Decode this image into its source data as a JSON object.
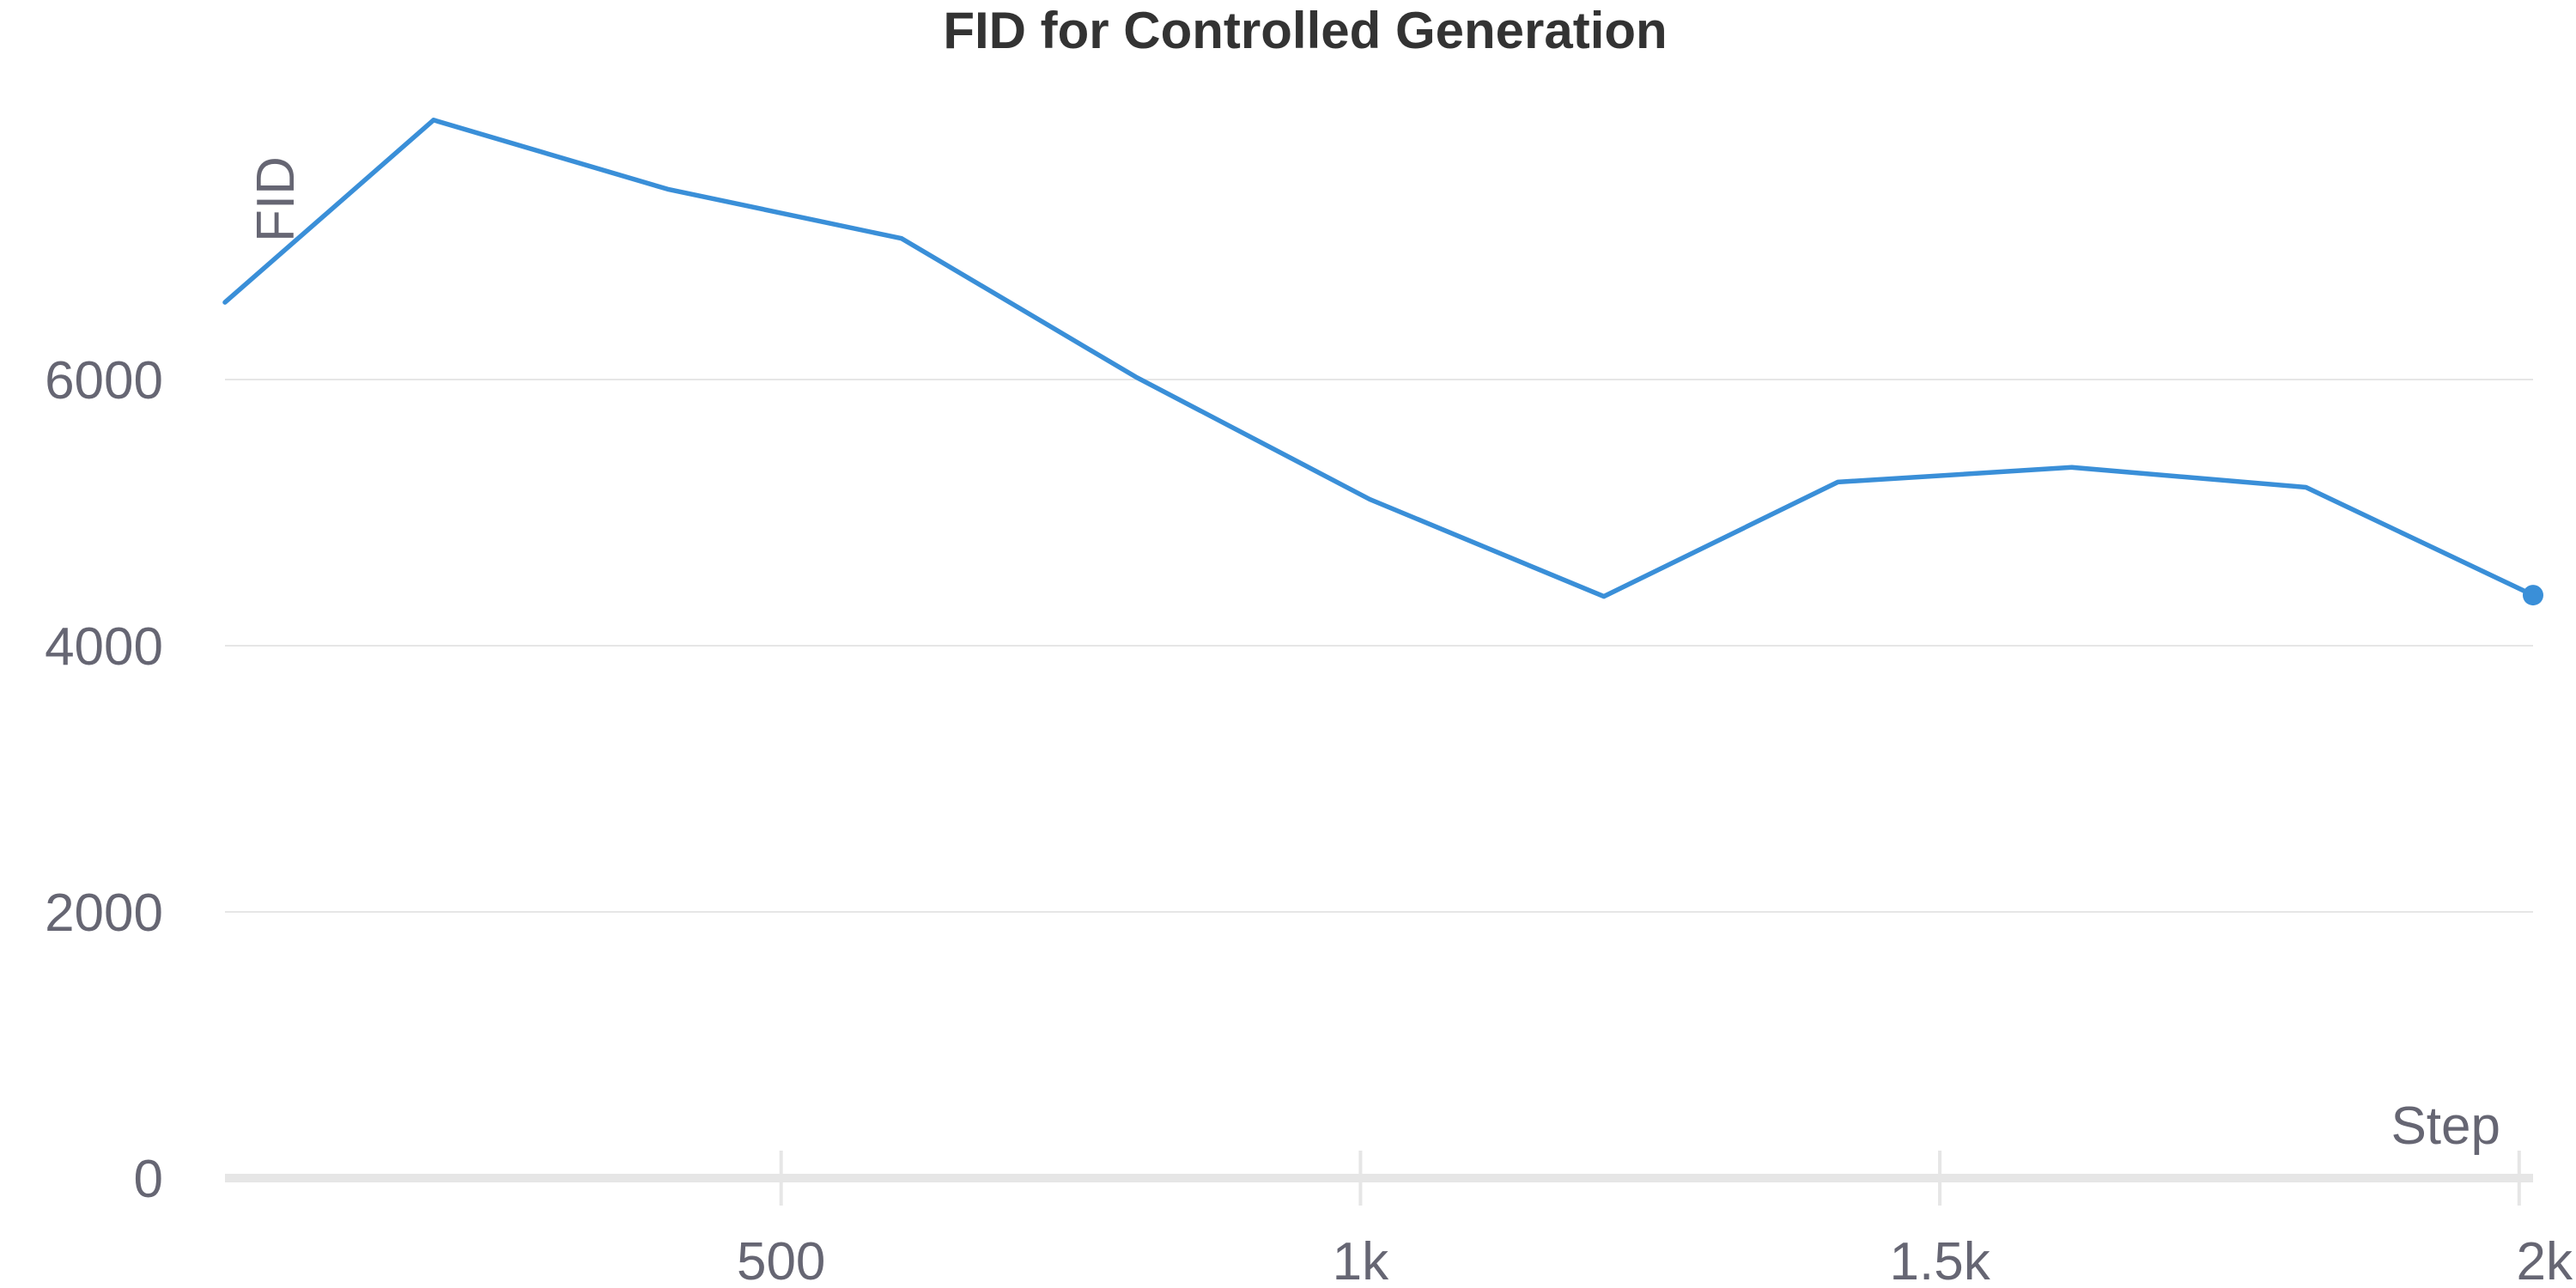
{
  "chart_data": {
    "type": "line",
    "title": "FID for Controlled Generation",
    "xlabel": "Step",
    "ylabel": "FID",
    "xlim": [
      20,
      2012
    ],
    "ylim": [
      0,
      7800
    ],
    "x_ticks": [
      {
        "value": 500,
        "label": "500"
      },
      {
        "value": 1000,
        "label": "1k"
      },
      {
        "value": 1500,
        "label": "1.5k"
      },
      {
        "value": 2000,
        "label": "2k"
      }
    ],
    "y_ticks": [
      {
        "value": 0,
        "label": "0"
      },
      {
        "value": 2000,
        "label": "2000"
      },
      {
        "value": 4000,
        "label": "4000"
      },
      {
        "value": 6000,
        "label": "6000"
      }
    ],
    "grid": true,
    "series": [
      {
        "color": "#3a8fd8",
        "points": [
          {
            "x": 20,
            "y": 6580
          },
          {
            "x": 200,
            "y": 7950
          },
          {
            "x": 402,
            "y": 7430
          },
          {
            "x": 604,
            "y": 7060
          },
          {
            "x": 806,
            "y": 6020
          },
          {
            "x": 1008,
            "y": 5100
          },
          {
            "x": 1210,
            "y": 4370
          },
          {
            "x": 1412,
            "y": 5230
          },
          {
            "x": 1614,
            "y": 5340
          },
          {
            "x": 1816,
            "y": 5190
          },
          {
            "x": 2012,
            "y": 4380
          }
        ],
        "end_marker": true
      }
    ]
  }
}
